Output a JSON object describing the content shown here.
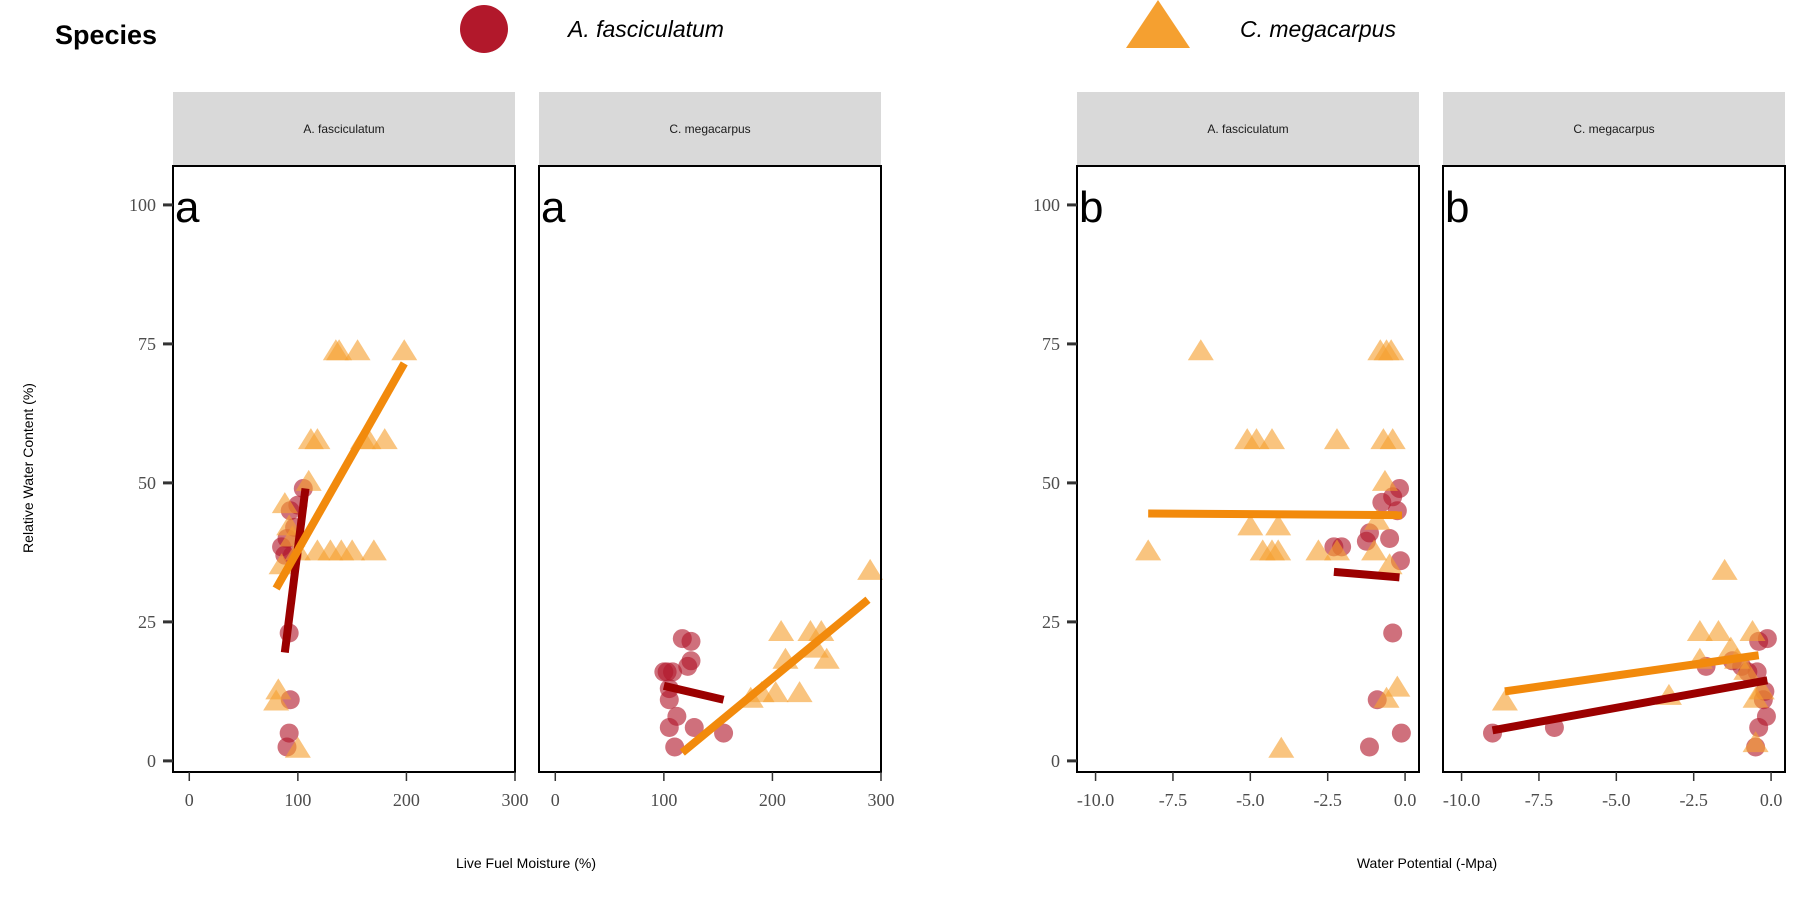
{
  "legend": {
    "title": "Species",
    "items": [
      {
        "label": "A. fasciculatum",
        "shape": "circle",
        "color": "#b2182b"
      },
      {
        "label": "C. megacarpus",
        "shape": "triangle",
        "color": "#f5a030"
      }
    ]
  },
  "colors": {
    "A_fasciculatum_points": "#b2182b",
    "C_megacarpus_points": "#f5a030",
    "A_fasciculatum_line": "#9b0000",
    "C_megacarpus_line": "#f28a0c",
    "strip": "#d9d9d9"
  },
  "chart_data": [
    {
      "type": "scatter",
      "ylabel": "Relative Water Content (%)",
      "ylim": [
        -2,
        107
      ],
      "yticks": [
        0,
        25,
        50,
        75,
        100
      ],
      "xlabel": "Live Fuel Moisture (%)",
      "grid": false,
      "panels": [
        {
          "strip": "A. fasciculatum",
          "tag": "a",
          "xlim": [
            -15,
            300
          ],
          "xticks": [
            "0",
            "100",
            "200",
            "300"
          ],
          "xtick_values": [
            0,
            100,
            200,
            300
          ],
          "series": [
            {
              "name": "A. fasciculatum",
              "shape": "circle",
              "points": [
                [
                  85,
                  38.5
                ],
                [
                  90,
                  40
                ],
                [
                  93,
                  45
                ],
                [
                  97,
                  42
                ],
                [
                  100,
                  46
                ],
                [
                  105,
                  49
                ],
                [
                  92,
                  23
                ],
                [
                  93,
                  11
                ],
                [
                  92,
                  5
                ],
                [
                  90,
                  2.5
                ],
                [
                  95,
                  37
                ],
                [
                  88,
                  37
                ]
              ]
            },
            {
              "name": "C. megacarpus",
              "shape": "triangle",
              "points": [
                [
                  135,
                  73.5
                ],
                [
                  138,
                  73.5
                ],
                [
                  155,
                  73.5
                ],
                [
                  198,
                  73.5
                ],
                [
                  112,
                  57.5
                ],
                [
                  118,
                  57.5
                ],
                [
                  160,
                  57.5
                ],
                [
                  165,
                  57.5
                ],
                [
                  180,
                  57.5
                ],
                [
                  110,
                  50
                ],
                [
                  88,
                  46
                ],
                [
                  92,
                  42
                ],
                [
                  95,
                  40
                ],
                [
                  100,
                  37.5
                ],
                [
                  118,
                  37.5
                ],
                [
                  130,
                  37.5
                ],
                [
                  140,
                  37.5
                ],
                [
                  150,
                  37.5
                ],
                [
                  170,
                  37.5
                ],
                [
                  85,
                  35
                ],
                [
                  82,
                  12.5
                ],
                [
                  80,
                  10.5
                ],
                [
                  100,
                  2
                ]
              ]
            }
          ],
          "trend_lines": [
            {
              "name": "A. fasciculatum",
              "from": [
                88,
                19.5
              ],
              "to": [
                107,
                49
              ]
            },
            {
              "name": "C. megacarpus",
              "from": [
                80,
                31
              ],
              "to": [
                198,
                71.5
              ]
            }
          ]
        },
        {
          "strip": "C. megacarpus",
          "tag": "a",
          "xlim": [
            -15,
            300
          ],
          "xticks": [
            "0",
            "100",
            "200",
            "300"
          ],
          "xtick_values": [
            0,
            100,
            200,
            300
          ],
          "series": [
            {
              "name": "A. fasciculatum",
              "shape": "circle",
              "points": [
                [
                  100,
                  16
                ],
                [
                  103,
                  16
                ],
                [
                  117,
                  22
                ],
                [
                  125,
                  21.5
                ],
                [
                  125,
                  18
                ],
                [
                  122,
                  17
                ],
                [
                  108,
                  16
                ],
                [
                  105,
                  13
                ],
                [
                  105,
                  11
                ],
                [
                  112,
                  8
                ],
                [
                  105,
                  6
                ],
                [
                  128,
                  6
                ],
                [
                  155,
                  5
                ],
                [
                  110,
                  2.5
                ]
              ]
            },
            {
              "name": "C. megacarpus",
              "shape": "triangle",
              "points": [
                [
                  290,
                  34
                ],
                [
                  208,
                  23
                ],
                [
                  235,
                  23
                ],
                [
                  245,
                  23
                ],
                [
                  240,
                  20
                ],
                [
                  212,
                  18
                ],
                [
                  250,
                  18
                ],
                [
                  190,
                  12
                ],
                [
                  203,
                  12
                ],
                [
                  225,
                  12
                ],
                [
                  180,
                  11
                ]
              ]
            }
          ],
          "trend_lines": [
            {
              "name": "A. fasciculatum",
              "from": [
                100,
                13.5
              ],
              "to": [
                155,
                11
              ]
            },
            {
              "name": "C. megacarpus",
              "from": [
                117,
                1.5
              ],
              "to": [
                288,
                29
              ]
            }
          ]
        }
      ]
    },
    {
      "type": "scatter",
      "ylabel": "",
      "ylim": [
        -2,
        107
      ],
      "yticks": [
        0,
        25,
        50,
        75,
        100
      ],
      "xlabel": "Water Potential (-Mpa)",
      "grid": false,
      "panels": [
        {
          "strip": "A. fasciculatum",
          "tag": "b",
          "xlim": [
            -10.6,
            0.45
          ],
          "xticks": [
            "-10.0",
            "-7.5",
            "-5.0",
            "-2.5",
            "0.0"
          ],
          "xtick_values": [
            -10,
            -7.5,
            -5,
            -2.5,
            0
          ],
          "series": [
            {
              "name": "A. fasciculatum",
              "shape": "circle",
              "points": [
                [
                  -2.3,
                  38.5
                ],
                [
                  -2.05,
                  38.5
                ],
                [
                  -1.25,
                  39.5
                ],
                [
                  -1.15,
                  41
                ],
                [
                  -0.75,
                  46.5
                ],
                [
                  -0.4,
                  47.5
                ],
                [
                  -0.18,
                  49
                ],
                [
                  -0.25,
                  45
                ],
                [
                  -0.5,
                  40
                ],
                [
                  -0.15,
                  36
                ],
                [
                  -0.4,
                  23
                ],
                [
                  -0.9,
                  11
                ],
                [
                  -1.15,
                  2.5
                ],
                [
                  -0.12,
                  5
                ]
              ]
            },
            {
              "name": "C. megacarpus",
              "shape": "triangle",
              "points": [
                [
                  -6.6,
                  73.5
                ],
                [
                  -0.8,
                  73.5
                ],
                [
                  -0.6,
                  73.5
                ],
                [
                  -0.45,
                  73.5
                ],
                [
                  -5.1,
                  57.5
                ],
                [
                  -4.8,
                  57.5
                ],
                [
                  -4.3,
                  57.5
                ],
                [
                  -2.2,
                  57.5
                ],
                [
                  -0.7,
                  57.5
                ],
                [
                  -0.4,
                  57.5
                ],
                [
                  -0.65,
                  50
                ],
                [
                  -5.0,
                  42
                ],
                [
                  -4.1,
                  42
                ],
                [
                  -0.9,
                  43
                ],
                [
                  -8.3,
                  37.5
                ],
                [
                  -4.6,
                  37.5
                ],
                [
                  -4.3,
                  37.5
                ],
                [
                  -4.1,
                  37.5
                ],
                [
                  -2.8,
                  37.5
                ],
                [
                  -2.2,
                  37.5
                ],
                [
                  -1.0,
                  37.5
                ],
                [
                  -0.5,
                  35
                ],
                [
                  -0.25,
                  13
                ],
                [
                  -0.6,
                  11
                ],
                [
                  -4.0,
                  2
                ]
              ]
            }
          ],
          "trend_lines": [
            {
              "name": "A. fasciculatum",
              "from": [
                -2.3,
                34
              ],
              "to": [
                -0.18,
                33
              ]
            },
            {
              "name": "C. megacarpus",
              "from": [
                -8.3,
                44.5
              ],
              "to": [
                -0.1,
                44.2
              ]
            }
          ]
        },
        {
          "strip": "C. megacarpus",
          "tag": "b",
          "xlim": [
            -10.6,
            0.45
          ],
          "xticks": [
            "-10.0",
            "-7.5",
            "-5.0",
            "-2.5",
            "0.0"
          ],
          "xtick_values": [
            -10,
            -7.5,
            -5,
            -2.5,
            0
          ],
          "series": [
            {
              "name": "A. fasciculatum",
              "shape": "circle",
              "points": [
                [
                  -9.0,
                  5
                ],
                [
                  -7.0,
                  6
                ],
                [
                  -2.1,
                  17
                ],
                [
                  -1.25,
                  18
                ],
                [
                  -0.95,
                  17
                ],
                [
                  -0.75,
                  16
                ],
                [
                  -0.45,
                  16
                ],
                [
                  -0.4,
                  21.5
                ],
                [
                  -0.12,
                  22
                ],
                [
                  -0.2,
                  12.5
                ],
                [
                  -0.25,
                  11
                ],
                [
                  -0.15,
                  8
                ],
                [
                  -0.4,
                  6
                ],
                [
                  -0.5,
                  2.5
                ]
              ]
            },
            {
              "name": "C. megacarpus",
              "shape": "triangle",
              "points": [
                [
                  -1.5,
                  34
                ],
                [
                  -2.3,
                  23
                ],
                [
                  -1.7,
                  23
                ],
                [
                  -0.6,
                  23
                ],
                [
                  -2.3,
                  18
                ],
                [
                  -1.3,
                  20
                ],
                [
                  -1.1,
                  18
                ],
                [
                  -0.8,
                  16
                ],
                [
                  -3.3,
                  11.5
                ],
                [
                  -0.5,
                  11
                ],
                [
                  -8.6,
                  10.5
                ],
                [
                  -0.5,
                  3
                ],
                [
                  -0.3,
                  12.5
                ]
              ]
            }
          ],
          "trend_lines": [
            {
              "name": "A. fasciculatum",
              "from": [
                -9.0,
                5.5
              ],
              "to": [
                -0.12,
                14.5
              ]
            },
            {
              "name": "C. megacarpus",
              "from": [
                -8.6,
                12.5
              ],
              "to": [
                -0.4,
                19
              ]
            }
          ]
        }
      ]
    }
  ]
}
